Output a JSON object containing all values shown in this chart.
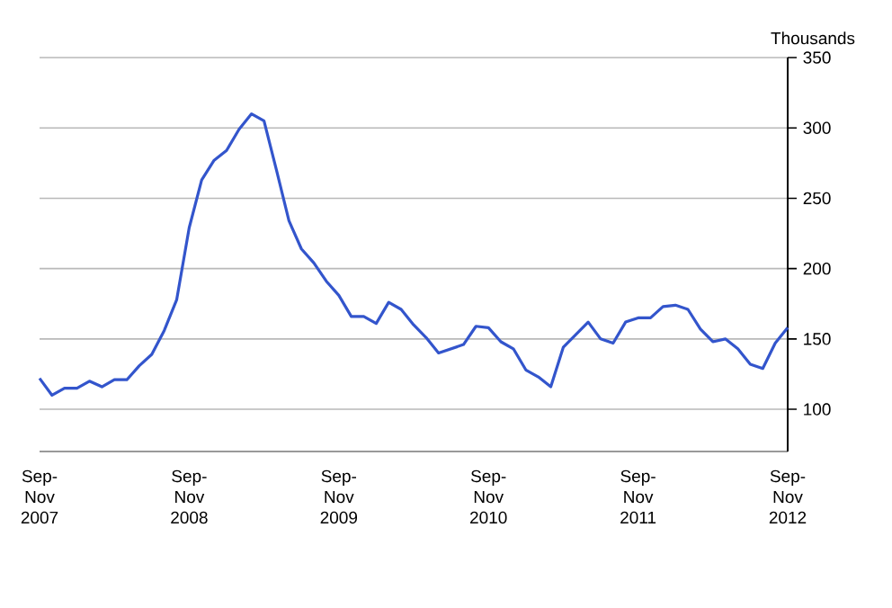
{
  "chart_data": {
    "type": "line",
    "ylabel": "Thousands",
    "categories": [
      "Sep-Nov 2007",
      null,
      null,
      null,
      null,
      null,
      null,
      null,
      null,
      null,
      null,
      null,
      "Sep-Nov 2008",
      null,
      null,
      null,
      null,
      null,
      null,
      null,
      null,
      null,
      null,
      null,
      "Sep-Nov 2009",
      null,
      null,
      null,
      null,
      null,
      null,
      null,
      null,
      null,
      null,
      null,
      "Sep-Nov 2010",
      null,
      null,
      null,
      null,
      null,
      null,
      null,
      null,
      null,
      null,
      null,
      "Sep-Nov 2011",
      null,
      null,
      null,
      null,
      null,
      null,
      null,
      null,
      null,
      null,
      null,
      "Sep-Nov 2012"
    ],
    "series": [
      {
        "color": "#3355cc",
        "values": [
          122,
          110,
          115,
          115,
          120,
          116,
          121,
          121,
          131,
          139,
          156,
          178,
          229,
          263,
          277,
          284,
          299,
          310,
          305,
          270,
          234,
          214,
          204,
          191,
          181,
          166,
          166,
          161,
          176,
          171,
          160,
          151,
          140,
          143,
          146,
          159,
          158,
          148,
          143,
          128,
          123,
          116,
          144,
          153,
          162,
          150,
          147,
          162,
          165,
          165,
          173,
          174,
          171,
          157,
          148,
          150,
          143,
          132,
          129,
          147,
          158
        ]
      }
    ],
    "ylim": [
      70,
      350
    ],
    "yticks": [
      100,
      150,
      200,
      250,
      300,
      350
    ],
    "grid": "y",
    "marker": "none",
    "line_style": "solid"
  }
}
